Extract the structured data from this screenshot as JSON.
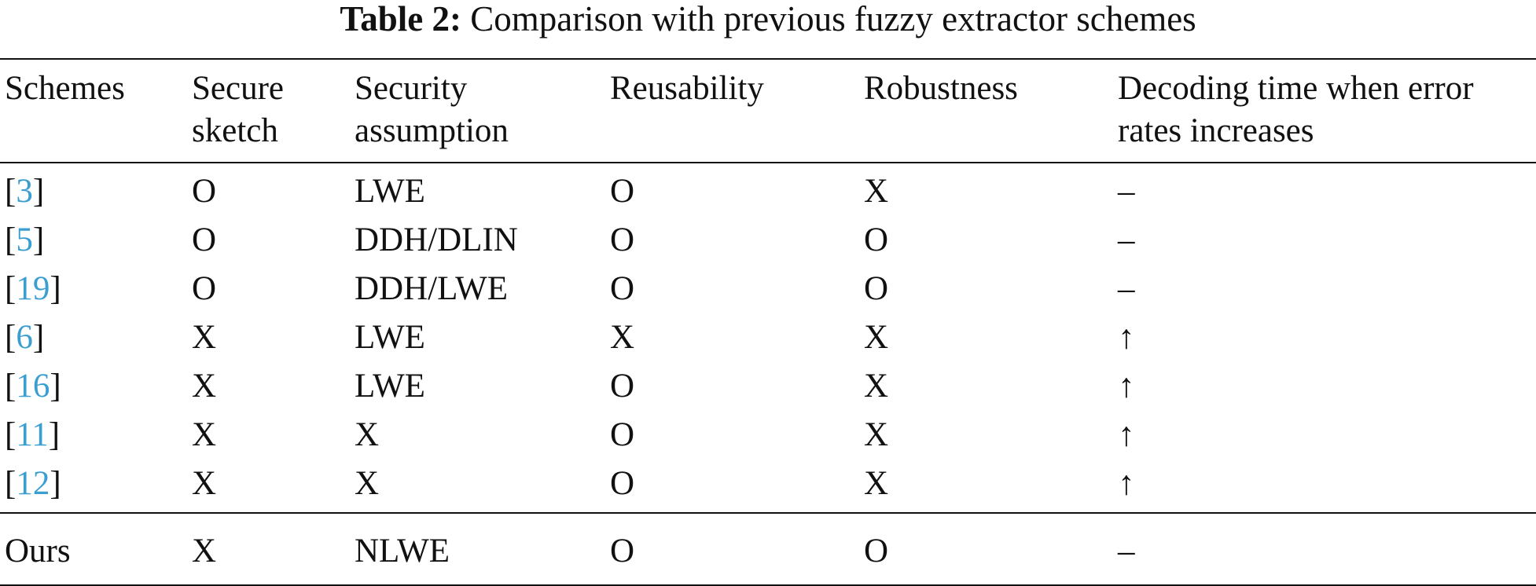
{
  "caption": {
    "label": "Table 2:",
    "text": "Comparison with previous fuzzy extractor schemes"
  },
  "headers": {
    "schemes": "Schemes",
    "secure_sketch_1": "Secure",
    "secure_sketch_2": "sketch",
    "security_assumption_1": "Security",
    "security_assumption_2": "assumption",
    "reusability": "Reusability",
    "robustness": "Robustness",
    "decoding_time_1": "Decoding time when error",
    "decoding_time_2": "rates increases"
  },
  "rows": [
    {
      "open": "[",
      "ref": "3",
      "close": "]",
      "secure_sketch": "O",
      "assumption": "LWE",
      "reusability": "O",
      "robustness": "X",
      "decoding": "–"
    },
    {
      "open": "[",
      "ref": "5",
      "close": "]",
      "secure_sketch": "O",
      "assumption": "DDH/DLIN",
      "reusability": "O",
      "robustness": "O",
      "decoding": "–"
    },
    {
      "open": "[",
      "ref": "19",
      "close": "]",
      "secure_sketch": "O",
      "assumption": "DDH/LWE",
      "reusability": "O",
      "robustness": "O",
      "decoding": "–"
    },
    {
      "open": "[",
      "ref": "6",
      "close": "]",
      "secure_sketch": "X",
      "assumption": "LWE",
      "reusability": "X",
      "robustness": "X",
      "decoding": "↑"
    },
    {
      "open": "[",
      "ref": "16",
      "close": "]",
      "secure_sketch": "X",
      "assumption": "LWE",
      "reusability": "O",
      "robustness": "X",
      "decoding": "↑"
    },
    {
      "open": "[",
      "ref": "11",
      "close": "]",
      "secure_sketch": "X",
      "assumption": "X",
      "reusability": "O",
      "robustness": "X",
      "decoding": "↑"
    },
    {
      "open": "[",
      "ref": "12",
      "close": "]",
      "secure_sketch": "X",
      "assumption": "X",
      "reusability": "O",
      "robustness": "X",
      "decoding": "↑"
    }
  ],
  "ours": {
    "scheme": "Ours",
    "secure_sketch": "X",
    "assumption": "NLWE",
    "reusability": "O",
    "robustness": "O",
    "decoding": "–"
  },
  "colors": {
    "reference_link": "#3a9fd0",
    "text": "#111111"
  }
}
